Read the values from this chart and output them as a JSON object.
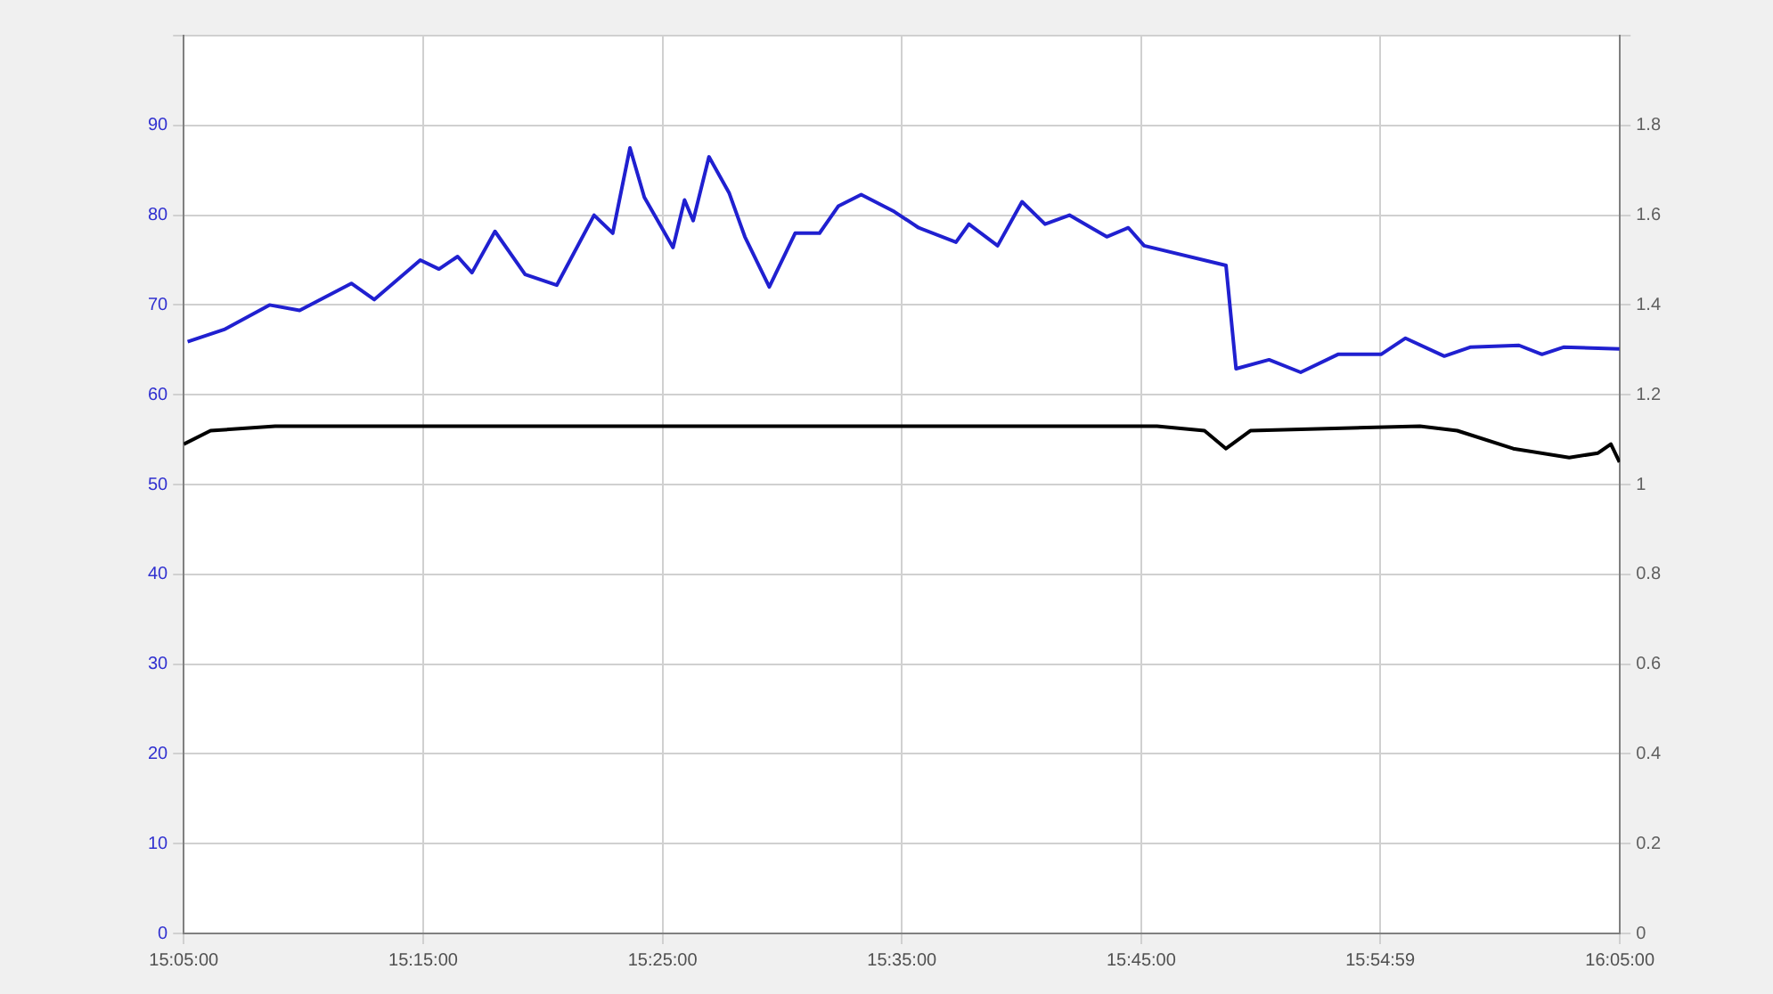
{
  "chart_data": {
    "type": "line",
    "xlim": [
      15.0833,
      16.0833
    ],
    "xticks": [
      {
        "value": 15.0833,
        "label": "15:05:00"
      },
      {
        "value": 15.25,
        "label": "15:15:00"
      },
      {
        "value": 15.4167,
        "label": "15:25:00"
      },
      {
        "value": 15.5833,
        "label": "15:35:00"
      },
      {
        "value": 15.75,
        "label": "15:45:00"
      },
      {
        "value": 15.9164,
        "label": "15:54:59"
      },
      {
        "value": 16.0833,
        "label": "16:05:00"
      }
    ],
    "ylim": [
      0,
      100
    ],
    "yticks": [
      0,
      10,
      20,
      30,
      40,
      50,
      60,
      70,
      80,
      90,
      {
        "value": 100,
        "label": null
      }
    ],
    "y2lim": [
      0,
      2
    ],
    "y2ticks": [
      0,
      0.2,
      0.4,
      0.6,
      0.8,
      1,
      1.2,
      1.4,
      1.6,
      1.8,
      {
        "value": 2,
        "label": null
      }
    ],
    "grid": true,
    "legend": false,
    "marker": "none",
    "line_style": "solid",
    "series": [
      {
        "color": "#2020d0",
        "axis": "y",
        "x": [
          15.086,
          15.112,
          15.143,
          15.164,
          15.2,
          15.216,
          15.248,
          15.261,
          15.274,
          15.284,
          15.3,
          15.321,
          15.343,
          15.369,
          15.382,
          15.394,
          15.404,
          15.424,
          15.432,
          15.438,
          15.449,
          15.463,
          15.474,
          15.491,
          15.509,
          15.526,
          15.539,
          15.555,
          15.578,
          15.595,
          15.621,
          15.63,
          15.65,
          15.667,
          15.683,
          15.7,
          15.726,
          15.741,
          15.752,
          15.809,
          15.816,
          15.839,
          15.861,
          15.887,
          15.917,
          15.934,
          15.961,
          15.979,
          16.013,
          16.029,
          16.044,
          16.083
        ],
        "values": [
          65.9,
          67.3,
          70,
          69.4,
          72.4,
          70.6,
          75,
          74,
          75.4,
          73.6,
          78.2,
          73.4,
          72.2,
          80,
          78,
          87.5,
          82,
          76.4,
          81.7,
          79.4,
          86.5,
          82.5,
          77.6,
          72,
          78,
          78,
          81,
          82.3,
          80.4,
          78.6,
          77,
          79,
          76.6,
          81.5,
          79,
          80,
          77.6,
          78.6,
          76.6,
          74.4,
          62.9,
          63.9,
          62.5,
          64.5,
          64.5,
          66.3,
          64.3,
          65.3,
          65.5,
          64.5,
          65.3,
          65.1
        ]
      },
      {
        "color": "#000000",
        "axis": "y2",
        "x": [
          15.0833,
          15.102,
          15.147,
          15.317,
          15.513,
          15.761,
          15.794,
          15.809,
          15.826,
          15.944,
          15.97,
          16.009,
          16.048,
          16.068,
          16.077,
          16.083
        ],
        "values": [
          1.09,
          1.12,
          1.13,
          1.13,
          1.13,
          1.13,
          1.12,
          1.08,
          1.12,
          1.13,
          1.12,
          1.08,
          1.06,
          1.07,
          1.09,
          1.05
        ]
      }
    ]
  }
}
